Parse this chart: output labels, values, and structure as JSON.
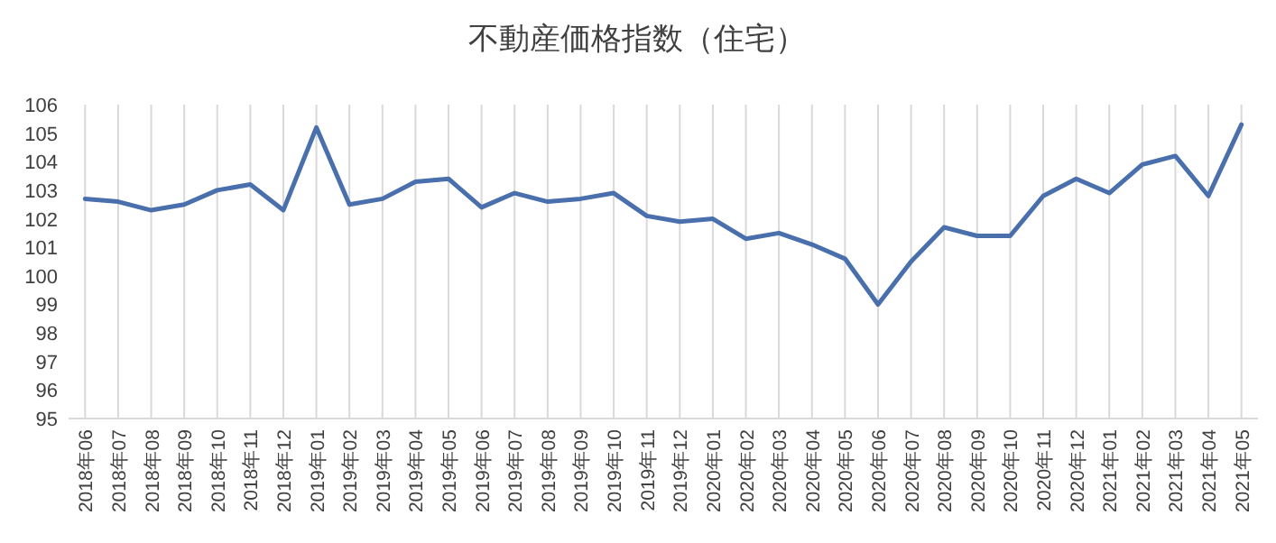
{
  "chart_data": {
    "type": "line",
    "title": "不動産価格指数（住宅）",
    "categories": [
      "2018年06",
      "2018年07",
      "2018年08",
      "2018年09",
      "2018年10",
      "2018年11",
      "2018年12",
      "2019年01",
      "2019年02",
      "2019年03",
      "2019年04",
      "2019年05",
      "2019年06",
      "2019年07",
      "2019年08",
      "2019年09",
      "2019年10",
      "2019年11",
      "2019年12",
      "2020年01",
      "2020年02",
      "2020年03",
      "2020年04",
      "2020年05",
      "2020年06",
      "2020年07",
      "2020年08",
      "2020年09",
      "2020年10",
      "2020年11",
      "2020年12",
      "2021年01",
      "2021年02",
      "2021年03",
      "2021年04",
      "2021年05"
    ],
    "series": [
      {
        "color": "#4a6fad",
        "values": [
          102.7,
          102.6,
          102.3,
          102.5,
          103.0,
          103.2,
          102.3,
          105.2,
          102.5,
          102.7,
          103.3,
          103.4,
          102.4,
          102.9,
          102.6,
          102.7,
          102.9,
          102.1,
          101.9,
          102.0,
          101.3,
          101.5,
          101.1,
          100.6,
          99.0,
          100.5,
          101.7,
          101.4,
          101.4,
          102.8,
          103.4,
          102.9,
          103.9,
          104.2,
          102.8,
          105.3
        ]
      }
    ],
    "ylim": [
      95,
      106
    ],
    "yticks": [
      95,
      96,
      97,
      98,
      99,
      100,
      101,
      102,
      103,
      104,
      105,
      106
    ],
    "grid": "x"
  }
}
